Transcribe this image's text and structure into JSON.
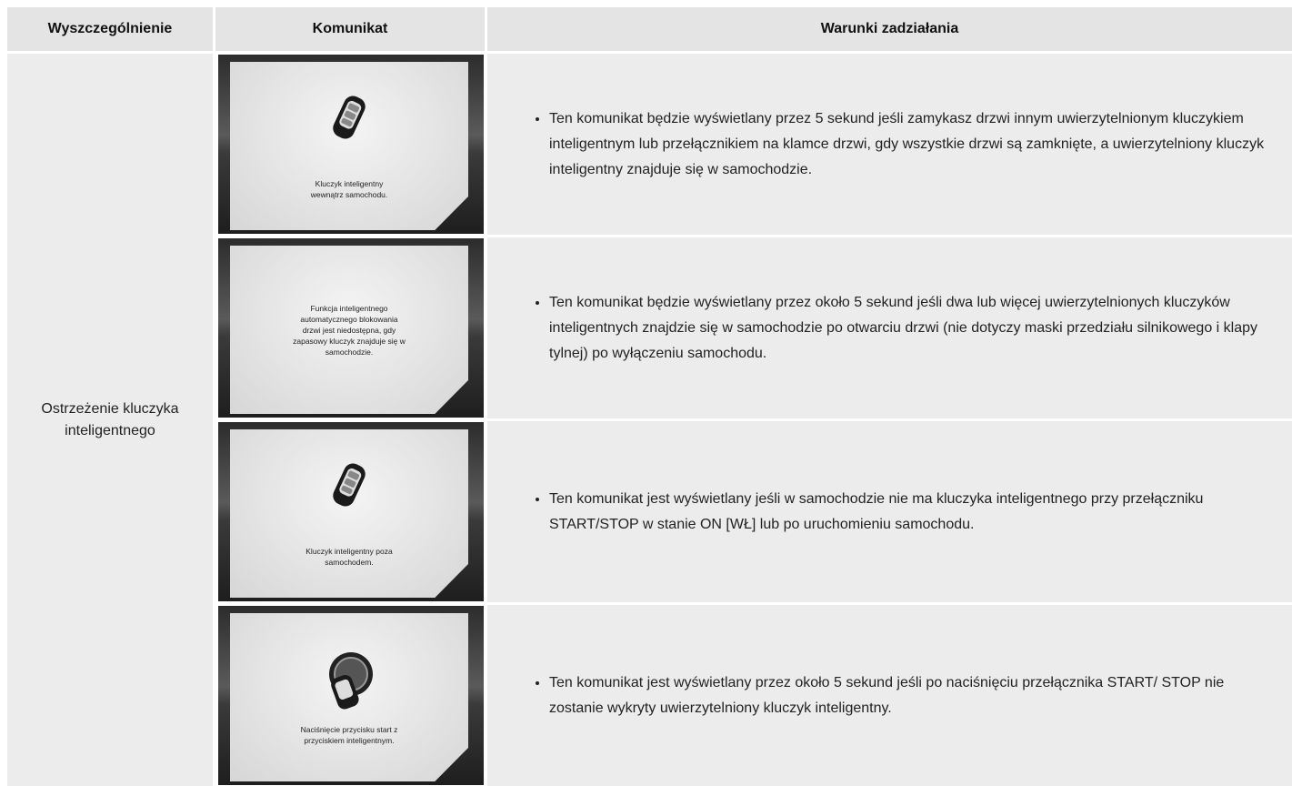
{
  "header": {
    "columns": [
      "Wyszczególnienie",
      "Komunikat",
      "Warunki zadziałania"
    ]
  },
  "table": {
    "item": "Ostrzeżenie kluczyka inteligentnego",
    "rows": [
      {
        "message": [
          "Kluczyk inteligentny",
          "wewnątrz samochodu."
        ],
        "condition": "Ten komunikat będzie wyświetlany przez 5 sekund jeśli zamykasz drzwi innym uwierzytelnionym kluczykiem inteligentnym lub przełącznikiem na klamce drzwi, gdy wszystkie drzwi są zamknięte, a uwierzytelniony kluczyk inteligentny znajduje się w samochodzie."
      },
      {
        "message": [
          "Funkcja inteligentnego",
          "automatycznego blokowania",
          "drzwi jest niedostępna, gdy",
          "zapasowy kluczyk znajduje się w",
          "samochodzie."
        ],
        "condition": "Ten komunikat będzie wyświetlany przez około 5 sekund jeśli dwa lub więcej uwierzytelnionych kluczyków inteligentnych znajdzie się w samochodzie po otwarciu drzwi (nie dotyczy maski przedziału silnikowego i klapy tylnej) po wyłączeniu samochodu."
      },
      {
        "message": [
          "Kluczyk inteligentny poza",
          "samochodem."
        ],
        "condition": "Ten komunikat jest wyświetlany jeśli w samochodzie nie ma kluczyka inteligentnego przy przełączniku START/STOP w stanie ON [WŁ] lub po uruchomieniu samochodu."
      },
      {
        "message": [
          "Naciśnięcie przycisku start z",
          "przyciskiem inteligentnym."
        ],
        "condition": "Ten komunikat jest wyświetlany przez około 5 sekund jeśli po naciśnięciu przełącznika START/ STOP nie zostanie wykryty uwierzytelniony kluczyk inteligentny."
      }
    ]
  }
}
